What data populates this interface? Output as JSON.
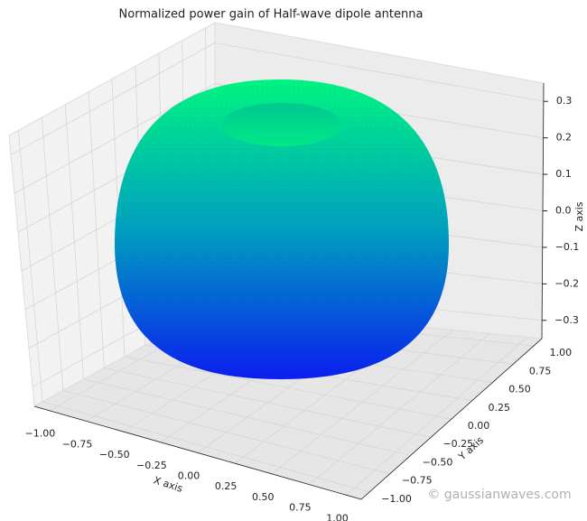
{
  "chart_data": {
    "type": "surface3d",
    "title": "Normalized power gain of Half-wave dipole antenna",
    "xlabel": "X axis",
    "ylabel": "Y axis",
    "zlabel": "Z axis",
    "xlim": [
      -1.1,
      1.1
    ],
    "ylim": [
      -1.1,
      1.1
    ],
    "zlim": [
      -0.35,
      0.35
    ],
    "xticks": [
      {
        "value": -1,
        "label": "−1.00"
      },
      {
        "value": -0.75,
        "label": "−0.75"
      },
      {
        "value": -0.5,
        "label": "−0.50"
      },
      {
        "value": -0.25,
        "label": "−0.25"
      },
      {
        "value": 0,
        "label": "0.00"
      },
      {
        "value": 0.25,
        "label": "0.25"
      },
      {
        "value": 0.5,
        "label": "0.50"
      },
      {
        "value": 0.75,
        "label": "0.75"
      },
      {
        "value": 1,
        "label": "1.00"
      }
    ],
    "yticks": [
      {
        "value": -1,
        "label": "−1.00"
      },
      {
        "value": -0.75,
        "label": "−0.75"
      },
      {
        "value": -0.5,
        "label": "−0.50"
      },
      {
        "value": -0.25,
        "label": "−0.25"
      },
      {
        "value": 0,
        "label": "0.00"
      },
      {
        "value": 0.25,
        "label": "0.25"
      },
      {
        "value": 0.5,
        "label": "0.50"
      },
      {
        "value": 0.75,
        "label": "0.75"
      },
      {
        "value": 1,
        "label": "1.00"
      }
    ],
    "zticks": [
      {
        "value": -0.3,
        "label": "−0.3"
      },
      {
        "value": -0.2,
        "label": "−0.2"
      },
      {
        "value": -0.1,
        "label": "−0.1"
      },
      {
        "value": 0,
        "label": "0.0"
      },
      0.1,
      0.2,
      0.3
    ],
    "grid": true,
    "watermark": "© gaussianwaves.com"
  }
}
